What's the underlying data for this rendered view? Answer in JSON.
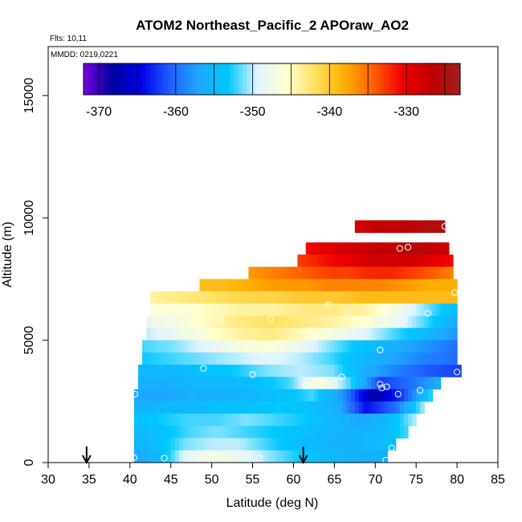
{
  "chart_data": {
    "type": "heatmap",
    "title": "ATOM2 Northeast_Pacific_2 APOraw_AO2",
    "flights_note": "Flts: 10,11",
    "dates_note": "MMDD: 0219,0221",
    "xlabel": "Latitude (deg N)",
    "ylabel": "Altitude (m)",
    "xlim": [
      30,
      85
    ],
    "ylim": [
      0,
      17000
    ],
    "x_ticks": [
      "30",
      "35",
      "40",
      "45",
      "50",
      "55",
      "60",
      "65",
      "70",
      "75",
      "80",
      "85"
    ],
    "y_ticks": [
      "0",
      "5000",
      "10000",
      "15000"
    ],
    "colorbar": {
      "min": -372,
      "max": -323,
      "ticks": [
        "-370",
        "-360",
        "-350",
        "-340",
        "-330"
      ],
      "colors": [
        "#7a00e0",
        "#0000a0",
        "#0000e8",
        "#2060ff",
        "#1fa8ff",
        "#00c8ff",
        "#e0f4ff",
        "#ffffd0",
        "#ffe060",
        "#ffb000",
        "#ff6000",
        "#f00000",
        "#c00000",
        "#a02020"
      ]
    },
    "bands": [
      {
        "alt": 9650,
        "lat_start": 67.5,
        "lat_end": 78.5,
        "values": [
          -328,
          -328,
          -327,
          -327,
          -327,
          -326,
          -325,
          -325
        ]
      },
      {
        "alt": 8750,
        "lat_start": 61.5,
        "lat_end": 79.0,
        "values": [
          -331,
          -330,
          -329,
          -328,
          -328,
          -327,
          -327,
          -326,
          -326,
          -327,
          -328
        ]
      },
      {
        "alt": 8250,
        "lat_start": 60.5,
        "lat_end": 79.5,
        "values": [
          -333,
          -332,
          -331,
          -330,
          -329,
          -328,
          -328,
          -328,
          -329,
          -330,
          -331
        ]
      },
      {
        "alt": 7750,
        "lat_start": 54.5,
        "lat_end": 79.5,
        "values": [
          -337,
          -336,
          -335,
          -334,
          -333,
          -333,
          -332,
          -332,
          -333,
          -334,
          -336
        ]
      },
      {
        "alt": 7250,
        "lat_start": 48.5,
        "lat_end": 80.0,
        "values": [
          -339,
          -339,
          -338,
          -337,
          -337,
          -336,
          -336,
          -336,
          -337,
          -338,
          -338
        ]
      },
      {
        "alt": 6750,
        "lat_start": 42.5,
        "lat_end": 80.0,
        "values": [
          -344,
          -343,
          -342,
          -341,
          -341,
          -340,
          -340,
          -339,
          -339,
          -339,
          -339
        ]
      },
      {
        "alt": 6250,
        "lat_start": 42.5,
        "lat_end": 80.0,
        "values": [
          -346,
          -346,
          -345,
          -344,
          -344,
          -343,
          -343,
          -344,
          -347,
          -351,
          -355
        ]
      },
      {
        "alt": 5750,
        "lat_start": 42.0,
        "lat_end": 80.0,
        "values": [
          -348,
          -347,
          -345,
          -343,
          -342,
          -343,
          -344,
          -346,
          -348,
          -352,
          -357
        ]
      },
      {
        "alt": 5250,
        "lat_start": 42.0,
        "lat_end": 80.0,
        "values": [
          -350,
          -348,
          -346,
          -344,
          -343,
          -345,
          -347,
          -349,
          -352,
          -355,
          -358
        ]
      },
      {
        "alt": 4750,
        "lat_start": 41.5,
        "lat_end": 80.0,
        "values": [
          -352,
          -351,
          -349,
          -347,
          -346,
          -348,
          -351,
          -354,
          -356,
          -358,
          -360
        ]
      },
      {
        "alt": 4250,
        "lat_start": 41.5,
        "lat_end": 80.0,
        "values": [
          -353,
          -352,
          -351,
          -350,
          -349,
          -350,
          -352,
          -355,
          -357,
          -359,
          -360
        ]
      },
      {
        "alt": 3750,
        "lat_start": 41.0,
        "lat_end": 80.5,
        "values": [
          -355,
          -355,
          -354,
          -353,
          -351,
          -350,
          -351,
          -356,
          -359,
          -361,
          -362
        ]
      },
      {
        "alt": 3250,
        "lat_start": 41.0,
        "lat_end": 78.0,
        "values": [
          -356,
          -356,
          -355,
          -355,
          -354,
          -352,
          -346,
          -352,
          -362,
          -360,
          -356
        ]
      },
      {
        "alt": 2750,
        "lat_start": 40.5,
        "lat_end": 77.0,
        "values": [
          -357,
          -357,
          -356,
          -356,
          -355,
          -354,
          -352,
          -358,
          -368,
          -362,
          -352
        ]
      },
      {
        "alt": 2250,
        "lat_start": 40.5,
        "lat_end": 76.0,
        "values": [
          -356,
          -355,
          -355,
          -354,
          -354,
          -353,
          -354,
          -356,
          -364,
          -360,
          -350
        ]
      },
      {
        "alt": 1750,
        "lat_start": 40.5,
        "lat_end": 75.0,
        "values": [
          -354,
          -353,
          -352,
          -352,
          -351,
          -352,
          -353,
          -355,
          -357,
          -355,
          -350
        ]
      },
      {
        "alt": 1250,
        "lat_start": 40.5,
        "lat_end": 74.0,
        "values": [
          -355,
          -354,
          -352,
          -351,
          -352,
          -353,
          -354,
          -355,
          -356,
          -355,
          -352
        ]
      },
      {
        "alt": 750,
        "lat_start": 40.5,
        "lat_end": 72.5,
        "values": [
          -356,
          -354,
          -351,
          -350,
          -350,
          -352,
          -354,
          -355,
          -356,
          -355,
          -354
        ]
      },
      {
        "alt": 250,
        "lat_start": 40.5,
        "lat_end": 71.5,
        "values": [
          -357,
          -355,
          -349,
          -347,
          -348,
          -350,
          -352,
          -354,
          -355,
          -356,
          -356
        ]
      }
    ],
    "observations": [
      [
        40.5,
        200
      ],
      [
        44.2,
        180
      ],
      [
        49.8,
        180
      ],
      [
        55.8,
        180
      ],
      [
        71.3,
        100
      ],
      [
        72.0,
        600
      ],
      [
        40.6,
        2800
      ],
      [
        49.0,
        3850
      ],
      [
        55.0,
        3600
      ],
      [
        61.5,
        3150
      ],
      [
        65.9,
        3500
      ],
      [
        70.6,
        3200
      ],
      [
        70.8,
        3050
      ],
      [
        71.4,
        3100
      ],
      [
        72.8,
        2800
      ],
      [
        75.5,
        2950
      ],
      [
        70.6,
        4600
      ],
      [
        80.0,
        3700
      ],
      [
        45.0,
        5800
      ],
      [
        51.0,
        5800
      ],
      [
        57.2,
        5850
      ],
      [
        64.3,
        6450
      ],
      [
        66.4,
        6150
      ],
      [
        70.2,
        6200
      ],
      [
        73.1,
        5800
      ],
      [
        76.4,
        6100
      ],
      [
        79.7,
        6950
      ],
      [
        73.0,
        8750
      ],
      [
        74.0,
        8800
      ],
      [
        78.5,
        9650
      ]
    ],
    "arrows": [
      34.7,
      61.2
    ]
  }
}
